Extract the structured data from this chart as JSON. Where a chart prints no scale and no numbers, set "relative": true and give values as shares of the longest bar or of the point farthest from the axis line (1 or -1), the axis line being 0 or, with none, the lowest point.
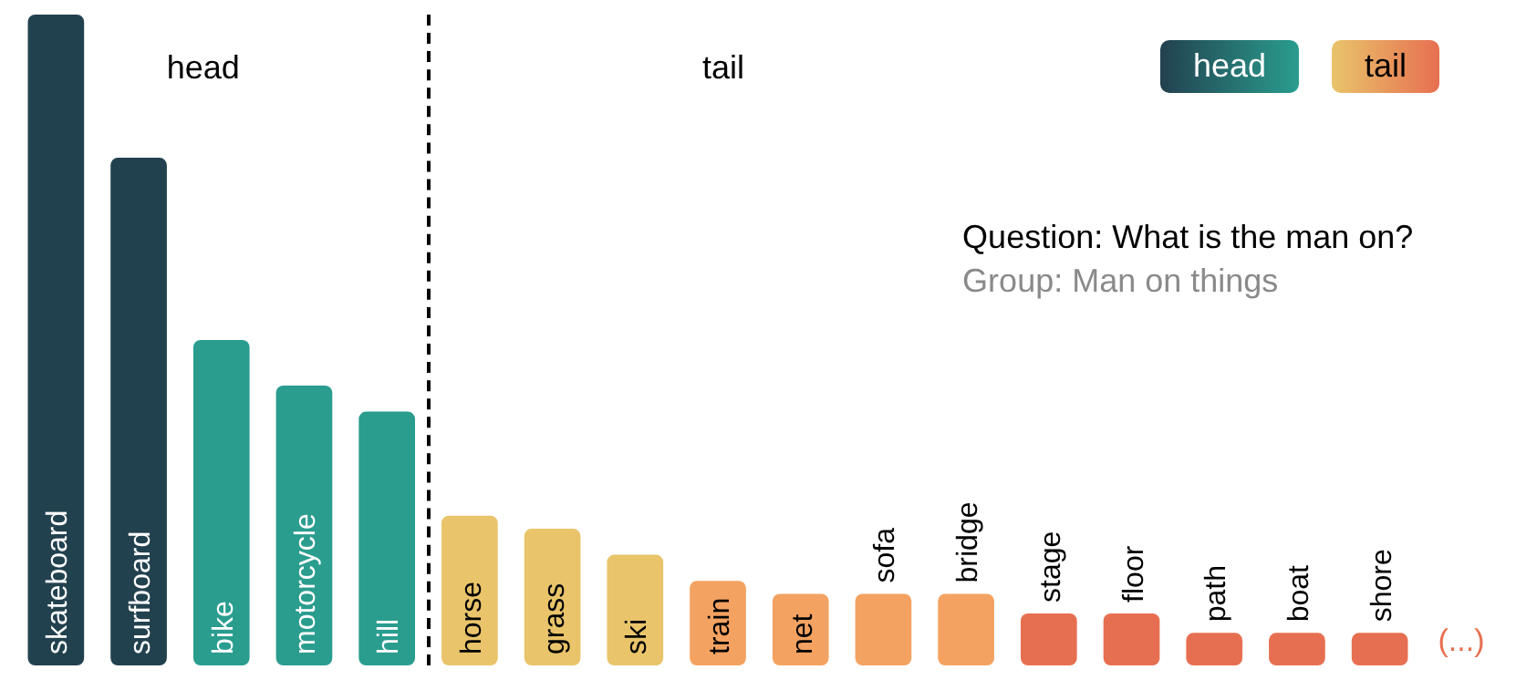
{
  "chart_data": {
    "type": "bar",
    "relative": true,
    "stacked": true,
    "legend": "top right",
    "categories": [
      "skateboard",
      "surfboard",
      "bike",
      "motorcycle",
      "hill",
      "horse",
      "grass",
      "ski",
      "train",
      "net",
      "sofa",
      "bridge",
      "stage",
      "floor",
      "path",
      "boat",
      "shore"
    ],
    "series": [
      {
        "name": "head",
        "colors": [
          "#22414f",
          "#22414f",
          "#2a9d8f",
          "#2a9d8f",
          "#2a9d8f",
          null,
          null,
          null,
          null,
          null,
          null,
          null,
          null,
          null,
          null,
          null,
          null
        ],
        "values": [
          1,
          0.78,
          0.5,
          0.43,
          0.39,
          null,
          null,
          null,
          null,
          null,
          null,
          null,
          null,
          null,
          null,
          null,
          null
        ]
      },
      {
        "name": "tail",
        "colors": [
          null,
          null,
          null,
          null,
          null,
          "#e9c46a",
          "#e9c46a",
          "#e9c46a",
          "#f4a261",
          "#f4a261",
          "#f4a261",
          "#f4a261",
          "#e76f51",
          "#e76f51",
          "#e76f51",
          "#e76f51",
          "#e76f51"
        ],
        "values": [
          null,
          null,
          null,
          null,
          null,
          0.23,
          0.21,
          0.17,
          0.13,
          0.11,
          0.11,
          0.11,
          0.08,
          0.08,
          0.05,
          0.05,
          0.05
        ]
      }
    ],
    "annotations": [
      "head",
      "tail",
      "Question: What is the man on?",
      "Group: Man on things",
      "(...)"
    ]
  }
}
